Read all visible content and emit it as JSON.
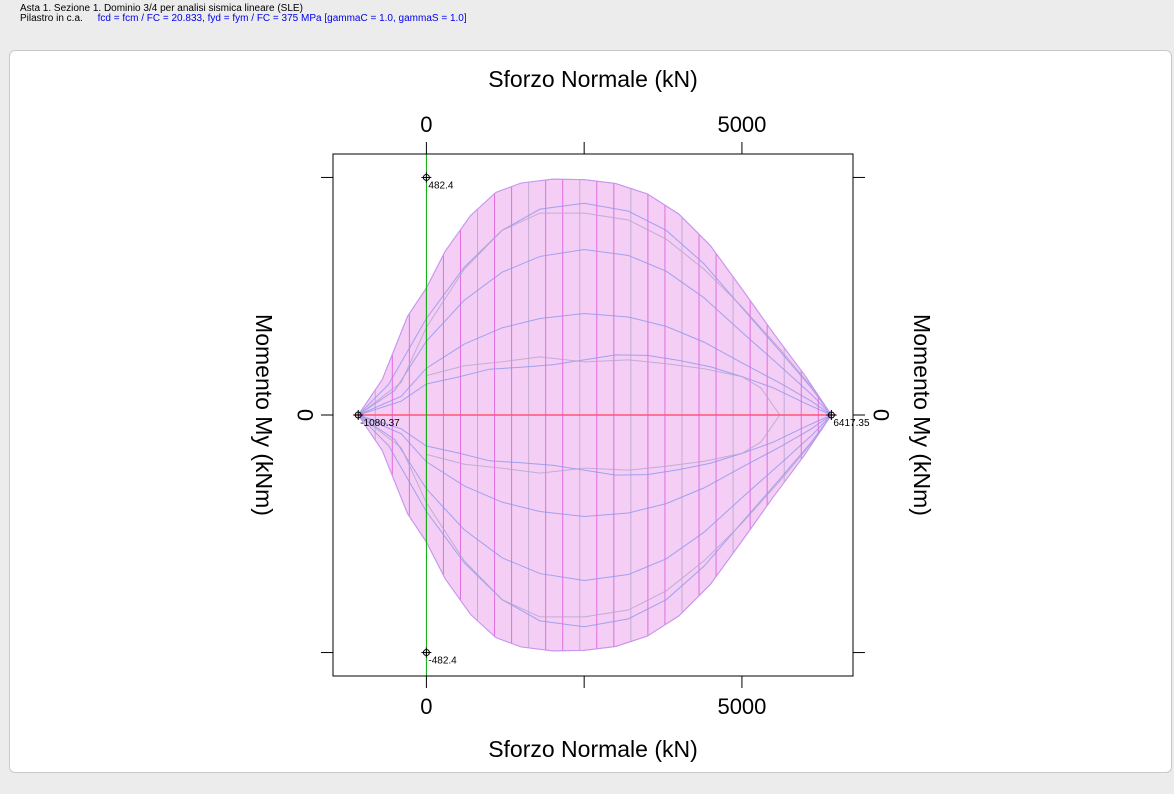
{
  "header": {
    "title": "Asta 1. Sezione 1. Dominio 3/4 per analisi sismica lineare (SLE)",
    "element": "Pilastro in c.a.",
    "params": "fcd = fcm  /  FC = 20.833, fyd = fym  /  FC = 375 MPa [gammaC = 1.0, gammaS = 1.0]"
  },
  "chart_data": {
    "type": "line",
    "title": "",
    "xlabel": "Sforzo Normale (kN)",
    "ylabel": "Momento My (kNm)",
    "xlim": [
      -1480,
      6760
    ],
    "ylim": [
      -530,
      530
    ],
    "xticks": [
      0,
      2500,
      5000
    ],
    "xtick_labels": [
      "0",
      "",
      "5000"
    ],
    "yticks": [
      -482.4,
      0,
      482.4
    ],
    "ytick_labels": [
      "",
      "0",
      ""
    ],
    "colors": {
      "fill": "#f2c6f2",
      "outline": "#c896ee",
      "inner_line": "#8d95ef",
      "gray_line": "#b4a5cc",
      "vertical": "#dd55dd",
      "zero_axis": "#ff5577",
      "n0_line": "#00aa00"
    },
    "labeled_points": [
      {
        "name": "max-moment",
        "x": 0,
        "y": 482.4,
        "label": "482.4"
      },
      {
        "name": "min-moment",
        "x": 0,
        "y": -482.4,
        "label": "-482.4"
      },
      {
        "name": "min-axial",
        "x": -1080.37,
        "y": 0,
        "label": "-1080.37"
      },
      {
        "name": "max-axial",
        "x": 6417.35,
        "y": 0,
        "label": "6417.35"
      }
    ],
    "series": [
      {
        "role": "outer",
        "x": [
          -1080.37,
          -700,
          -300,
          0,
          300,
          700,
          1100,
          1500,
          2000,
          2500,
          3000,
          3500,
          4000,
          4500,
          5000,
          5500,
          6000,
          6417.35
        ],
        "y": [
          0,
          72,
          200,
          258,
          333,
          405,
          452,
          471,
          479,
          478,
          470,
          449,
          408,
          344,
          256,
          166,
          80,
          0
        ]
      },
      {
        "role": "inner",
        "x": [
          -1080.37,
          -600,
          0,
          600,
          1200,
          1800,
          2500,
          3200,
          3800,
          4400,
          5000,
          5600,
          6100,
          6417.35
        ],
        "y": [
          0,
          62,
          196,
          300,
          375,
          418,
          430,
          414,
          375,
          307,
          218,
          130,
          55,
          0
        ]
      },
      {
        "role": "inner",
        "x": [
          -1080.37,
          -500,
          0,
          600,
          1200,
          1800,
          2500,
          3200,
          3800,
          4400,
          5000,
          5600,
          6100,
          6417.35
        ],
        "y": [
          0,
          50,
          150,
          233,
          290,
          322,
          336,
          324,
          292,
          238,
          168,
          100,
          42,
          0
        ]
      },
      {
        "role": "inner",
        "x": [
          -1080.37,
          -400,
          0,
          600,
          1200,
          1800,
          2500,
          3200,
          3800,
          4400,
          5000,
          5600,
          6100,
          6417.35
        ],
        "y": [
          0,
          38,
          95,
          144,
          177,
          196,
          206,
          199,
          180,
          148,
          106,
          65,
          28,
          0
        ]
      },
      {
        "role": "inner",
        "x": [
          -1080.37,
          -400,
          0,
          500,
          1000,
          1500,
          2000,
          2500,
          3000,
          3500,
          4000,
          4500,
          5000,
          5500,
          6000,
          6417.35
        ],
        "y": [
          0,
          28,
          63,
          77,
          93,
          97,
          102,
          112,
          122,
          121,
          111,
          98,
          78,
          55,
          24,
          0
        ]
      },
      {
        "role": "gray",
        "x": [
          -1080.37,
          -400,
          0,
          600,
          1200,
          1800,
          2500,
          3200,
          3800,
          4400,
          5000,
          5600,
          6100,
          6417.35
        ],
        "y": [
          0,
          66,
          178,
          296,
          375,
          410,
          410,
          396,
          357,
          296,
          220,
          134,
          58,
          0
        ]
      },
      {
        "role": "gray",
        "x": [
          0,
          600,
          1200,
          1800,
          2500,
          3200,
          3800,
          4400,
          5000,
          5300,
          5600
        ],
        "y": [
          80,
          100,
          108,
          118,
          108,
          112,
          104,
          94,
          78,
          55,
          0
        ]
      }
    ]
  }
}
